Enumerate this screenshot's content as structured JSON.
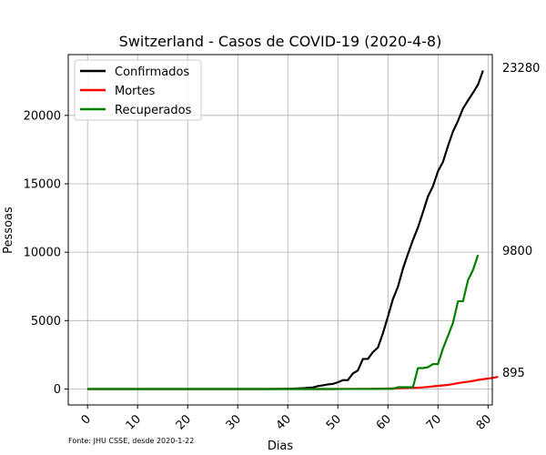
{
  "chart_data": {
    "type": "line",
    "title": "Switzerland - Casos de COVID-19 (2020-4-8)",
    "xlabel": "Dias",
    "ylabel": "Pessoas",
    "xlim": [
      -3.85,
      80.85
    ],
    "ylim": [
      -1164,
      24444
    ],
    "xticks": [
      0,
      10,
      20,
      30,
      40,
      50,
      60,
      70,
      80
    ],
    "yticks": [
      0,
      5000,
      10000,
      15000,
      20000
    ],
    "grid": true,
    "legend_position": "top-left",
    "footnote": "Fonte: JHU CSSE, desde 2020-1-22",
    "last_value_labels": [
      "23280",
      "9800",
      "895"
    ],
    "series": [
      {
        "name": "Confirmados",
        "color": "#000000",
        "points": [
          [
            0,
            0
          ],
          [
            34,
            0
          ],
          [
            36,
            1
          ],
          [
            38,
            8
          ],
          [
            40,
            18
          ],
          [
            41,
            27
          ],
          [
            42,
            42
          ],
          [
            43,
            56
          ],
          [
            44,
            90
          ],
          [
            45,
            114
          ],
          [
            46,
            214
          ],
          [
            47,
            268
          ],
          [
            48,
            337
          ],
          [
            49,
            374
          ],
          [
            50,
            491
          ],
          [
            51,
            652
          ],
          [
            52,
            652
          ],
          [
            53,
            1139
          ],
          [
            54,
            1359
          ],
          [
            55,
            2200
          ],
          [
            56,
            2200
          ],
          [
            57,
            2700
          ],
          [
            58,
            3028
          ],
          [
            59,
            4075
          ],
          [
            60,
            5294
          ],
          [
            61,
            6575
          ],
          [
            62,
            7474
          ],
          [
            63,
            8795
          ],
          [
            64,
            9877
          ],
          [
            65,
            10897
          ],
          [
            66,
            11811
          ],
          [
            67,
            12928
          ],
          [
            68,
            14076
          ],
          [
            69,
            14829
          ],
          [
            70,
            15922
          ],
          [
            71,
            16605
          ],
          [
            72,
            17768
          ],
          [
            73,
            18827
          ],
          [
            74,
            19606
          ],
          [
            75,
            20505
          ],
          [
            76,
            21100
          ],
          [
            77,
            21657
          ],
          [
            78,
            22253
          ],
          [
            79,
            23280
          ]
        ]
      },
      {
        "name": "Mortes",
        "color": "#ff0000",
        "points": [
          [
            0,
            0
          ],
          [
            49,
            0
          ],
          [
            52,
            4
          ],
          [
            54,
            13
          ],
          [
            56,
            14
          ],
          [
            58,
            21
          ],
          [
            60,
            33
          ],
          [
            62,
            56
          ],
          [
            64,
            80
          ],
          [
            66,
            98
          ],
          [
            67,
            120
          ],
          [
            68,
            153
          ],
          [
            69,
            191
          ],
          [
            70,
            231
          ],
          [
            71,
            264
          ],
          [
            72,
            300
          ],
          [
            73,
            359
          ],
          [
            74,
            433
          ],
          [
            75,
            488
          ],
          [
            76,
            536
          ],
          [
            77,
            591
          ],
          [
            78,
            666
          ],
          [
            79,
            715
          ],
          [
            80,
            765
          ],
          [
            81,
            821
          ],
          [
            82,
            895
          ]
        ]
      },
      {
        "name": "Recuperados",
        "color": "#008000",
        "points": [
          [
            0,
            0
          ],
          [
            49,
            0
          ],
          [
            50,
            4
          ],
          [
            56,
            4
          ],
          [
            60,
            15
          ],
          [
            61,
            15
          ],
          [
            62,
            131
          ],
          [
            64,
            131
          ],
          [
            65,
            131
          ],
          [
            66,
            1530
          ],
          [
            67,
            1530
          ],
          [
            68,
            1595
          ],
          [
            69,
            1823
          ],
          [
            70,
            1823
          ],
          [
            71,
            2967
          ],
          [
            72,
            3889
          ],
          [
            73,
            4846
          ],
          [
            74,
            6415
          ],
          [
            75,
            6415
          ],
          [
            76,
            7967
          ],
          [
            77,
            8704
          ],
          [
            78,
            9800
          ]
        ]
      }
    ]
  }
}
